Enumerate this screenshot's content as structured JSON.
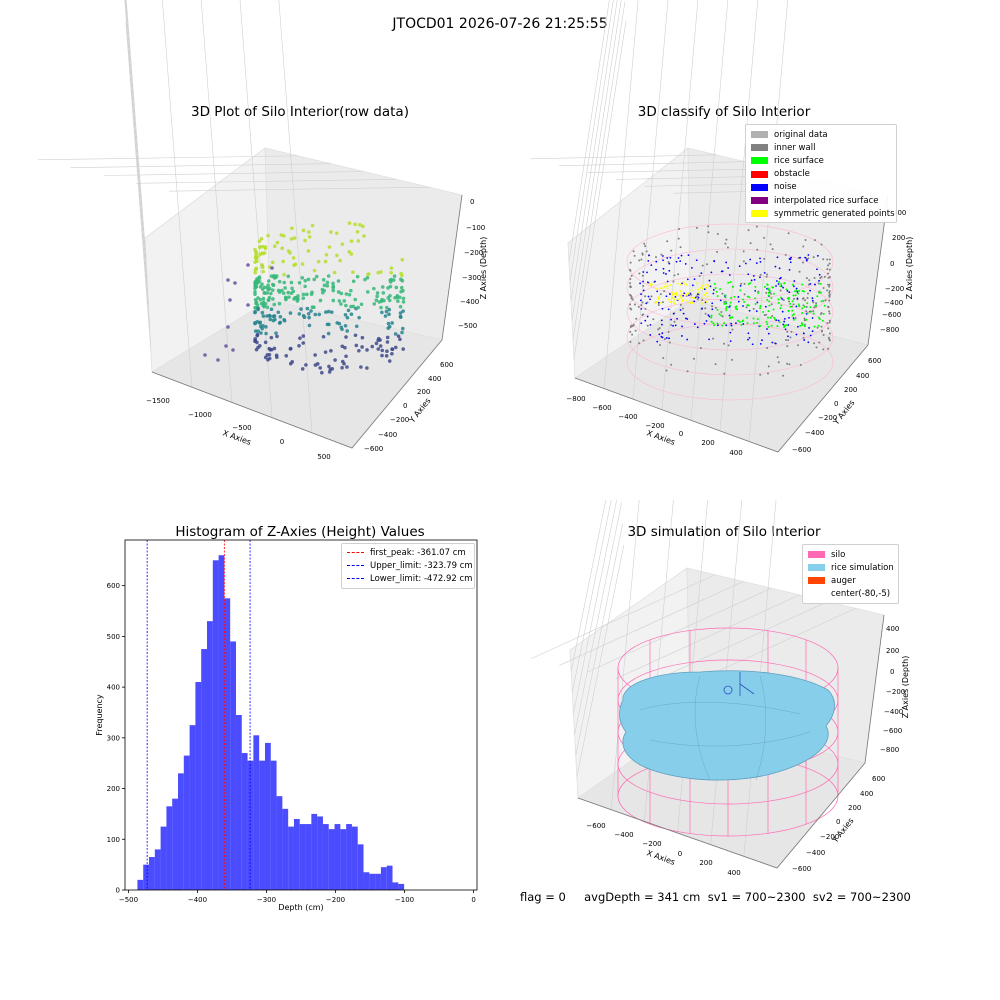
{
  "figure": {
    "suptitle": "JTOCD01 2026-07-26 21:25:55"
  },
  "panel_raw": {
    "title": "3D Plot of Silo Interior(row data)",
    "xlabel": "X Axies",
    "ylabel": "Y Axies",
    "zlabel": "Z Axies (Depth)",
    "xticks": [
      "−1500",
      "−1000",
      "−500",
      "0",
      "500"
    ],
    "yticks": [
      "600",
      "400",
      "200",
      "0",
      "−200",
      "−400",
      "−600"
    ],
    "zticks": [
      "0",
      "−100",
      "−200",
      "−300",
      "−400",
      "−500"
    ]
  },
  "panel_classify": {
    "title": "3D classify of Silo Interior",
    "xlabel": "X Axies",
    "ylabel": "Y Axies",
    "zlabel": "Z Axies (Depth)",
    "xticks": [
      "−800",
      "−600",
      "−400",
      "−200",
      "0",
      "200",
      "400"
    ],
    "yticks": [
      "600",
      "400",
      "200",
      "0",
      "−200",
      "−400",
      "−600"
    ],
    "zticks": [
      "400",
      "200",
      "0",
      "−200",
      "−400",
      "−600",
      "−800"
    ],
    "legend": [
      {
        "label": "original data",
        "color": "#b0b0b0"
      },
      {
        "label": "inner wall",
        "color": "#808080"
      },
      {
        "label": "rice surface",
        "color": "#00ff00"
      },
      {
        "label": "obstacle",
        "color": "#ff0000"
      },
      {
        "label": "noise",
        "color": "#0000ff"
      },
      {
        "label": "interpolated rice surface",
        "color": "#800080"
      },
      {
        "label": "symmetric generated points",
        "color": "#ffff00"
      }
    ]
  },
  "panel_sim": {
    "title": "3D simulation of Silo Interior",
    "xlabel": "X Axies",
    "ylabel": "Y Axies",
    "zlabel": "Z Axies (Depth)",
    "xticks": [
      "−600",
      "−400",
      "−200",
      "0",
      "200",
      "400"
    ],
    "yticks": [
      "600",
      "400",
      "200",
      "0",
      "−200",
      "−400",
      "−600"
    ],
    "zticks": [
      "400",
      "200",
      "0",
      "−200",
      "−400",
      "−600",
      "−800"
    ],
    "legend": [
      {
        "label": "silo",
        "color": "#ff69b4"
      },
      {
        "label": "rice simulation",
        "color": "#87ceeb"
      },
      {
        "label": "auger",
        "color": "#ff4500"
      },
      {
        "label": "center(-80,-5)",
        "color": "#ffffff"
      }
    ]
  },
  "footer": {
    "text": "flag = 0     avgDepth = 341 cm  sv1 = 700~2300  sv2 = 700~2300"
  },
  "chart_data": {
    "type": "bar",
    "title": "Histogram of Z-Axies (Height) Values",
    "xlabel": "Depth (cm)",
    "ylabel": "Frequency",
    "xlim": [
      -505,
      5
    ],
    "ylim": [
      0,
      690
    ],
    "xticks": [
      -500,
      -400,
      -300,
      -200,
      -100,
      0
    ],
    "yticks": [
      0,
      100,
      200,
      300,
      400,
      500,
      600
    ],
    "bar_color": "#0000ff",
    "bin_start": -487,
    "bin_width": 8.4,
    "values": [
      20,
      50,
      65,
      80,
      125,
      165,
      180,
      230,
      265,
      325,
      410,
      475,
      530,
      650,
      660,
      575,
      490,
      345,
      270,
      255,
      305,
      255,
      290,
      255,
      185,
      160,
      125,
      140,
      130,
      130,
      150,
      145,
      130,
      120,
      130,
      120,
      130,
      125,
      90,
      35,
      32,
      32,
      45,
      48,
      15,
      12
    ],
    "vlines": [
      {
        "label": "first_peak: -361.07 cm",
        "x": -361.07,
        "color": "#ff0000"
      },
      {
        "label": "Upper_limit: -323.79 cm",
        "x": -323.79,
        "color": "#0000ff"
      },
      {
        "label": "Lower_limit: -472.92 cm",
        "x": -472.92,
        "color": "#0000ff"
      }
    ]
  }
}
